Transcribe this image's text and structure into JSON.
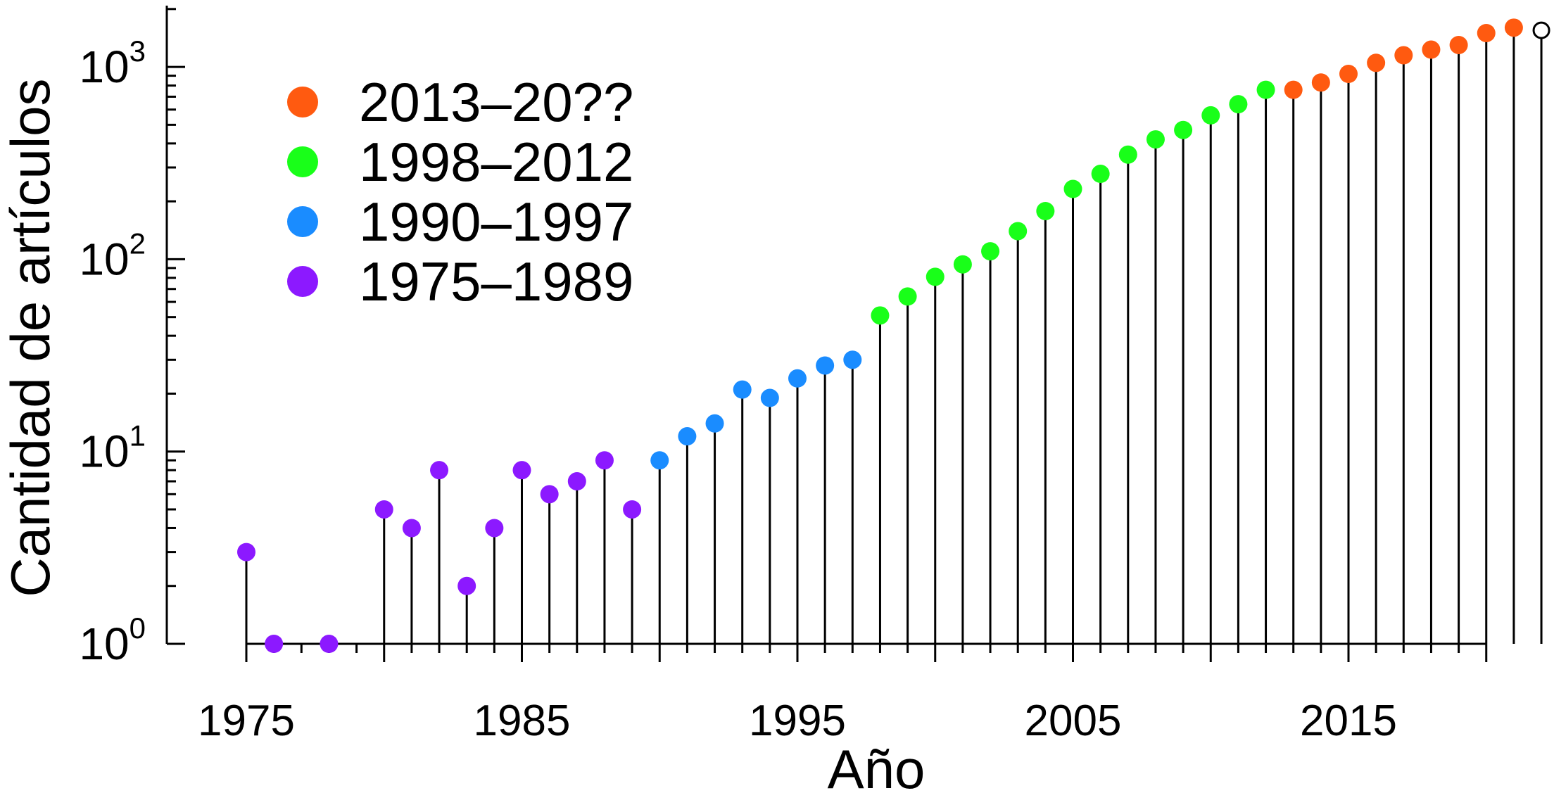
{
  "chart_data": {
    "type": "scatter",
    "style": "stem",
    "title": "",
    "xlabel": "Año",
    "ylabel": "Cantidad de artículos",
    "xscale": "linear",
    "yscale": "log",
    "xlim": [
      1975,
      2022
    ],
    "ylim": [
      1,
      2000
    ],
    "xticks": [
      {
        "value": 1975,
        "label": "1975"
      },
      {
        "value": 1985,
        "label": "1985"
      },
      {
        "value": 1995,
        "label": "1995"
      },
      {
        "value": 2005,
        "label": "2005"
      },
      {
        "value": 2015,
        "label": "2015"
      }
    ],
    "yticks": [
      {
        "value": 1,
        "base": "10",
        "exp": "0"
      },
      {
        "value": 10,
        "base": "10",
        "exp": "1"
      },
      {
        "value": 100,
        "base": "10",
        "exp": "2"
      },
      {
        "value": 1000,
        "base": "10",
        "exp": "3"
      }
    ],
    "grid": false,
    "legend_position": "top-left",
    "series": [
      {
        "name": "2013–20??",
        "color": "#ff5a10",
        "points": [
          {
            "x": 2013,
            "y": 760
          },
          {
            "x": 2014,
            "y": 830
          },
          {
            "x": 2015,
            "y": 920
          },
          {
            "x": 2016,
            "y": 1050
          },
          {
            "x": 2017,
            "y": 1150
          },
          {
            "x": 2018,
            "y": 1230
          },
          {
            "x": 2019,
            "y": 1300
          },
          {
            "x": 2020,
            "y": 1500
          },
          {
            "x": 2021,
            "y": 1600
          }
        ]
      },
      {
        "name": "1998–2012",
        "color": "#19ff19",
        "points": [
          {
            "x": 1998,
            "y": 51
          },
          {
            "x": 1999,
            "y": 64
          },
          {
            "x": 2000,
            "y": 81
          },
          {
            "x": 2001,
            "y": 94
          },
          {
            "x": 2002,
            "y": 110
          },
          {
            "x": 2003,
            "y": 140
          },
          {
            "x": 2004,
            "y": 178
          },
          {
            "x": 2005,
            "y": 232
          },
          {
            "x": 2006,
            "y": 278
          },
          {
            "x": 2007,
            "y": 350
          },
          {
            "x": 2008,
            "y": 420
          },
          {
            "x": 2009,
            "y": 470
          },
          {
            "x": 2010,
            "y": 560
          },
          {
            "x": 2011,
            "y": 640
          },
          {
            "x": 2012,
            "y": 760
          }
        ]
      },
      {
        "name": "1990–1997",
        "color": "#1a8cff",
        "points": [
          {
            "x": 1990,
            "y": 9
          },
          {
            "x": 1991,
            "y": 12
          },
          {
            "x": 1992,
            "y": 14
          },
          {
            "x": 1993,
            "y": 21
          },
          {
            "x": 1994,
            "y": 19
          },
          {
            "x": 1995,
            "y": 24
          },
          {
            "x": 1996,
            "y": 28
          },
          {
            "x": 1997,
            "y": 30
          }
        ]
      },
      {
        "name": "1975–1989",
        "color": "#8c19ff",
        "points": [
          {
            "x": 1975,
            "y": 3
          },
          {
            "x": 1976,
            "y": 1
          },
          {
            "x": 1978,
            "y": 1
          },
          {
            "x": 1980,
            "y": 5
          },
          {
            "x": 1981,
            "y": 4
          },
          {
            "x": 1982,
            "y": 8
          },
          {
            "x": 1983,
            "y": 2
          },
          {
            "x": 1984,
            "y": 4
          },
          {
            "x": 1985,
            "y": 8
          },
          {
            "x": 1986,
            "y": 6
          },
          {
            "x": 1987,
            "y": 7
          },
          {
            "x": 1988,
            "y": 9
          },
          {
            "x": 1989,
            "y": 5
          }
        ]
      }
    ],
    "open_points": [
      {
        "x": 2022,
        "y": 1550,
        "color": "#ffffff"
      }
    ]
  }
}
